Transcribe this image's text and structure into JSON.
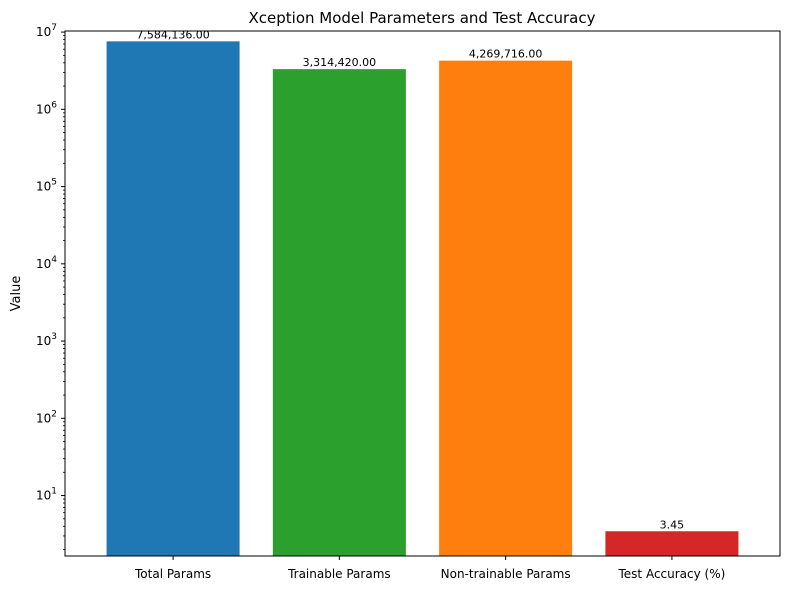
{
  "chart_data": {
    "type": "bar",
    "title": "Xception Model Parameters and Test Accuracy",
    "xlabel": "",
    "ylabel": "Value",
    "yscale": "log",
    "ylim": [
      1.65,
      10000000
    ],
    "categories": [
      "Total Params",
      "Trainable Params",
      "Non-trainable Params",
      "Test Accuracy (%)"
    ],
    "values": [
      7584136,
      3314420,
      4269716,
      3.45
    ],
    "data_labels": [
      "7,584,136.00",
      "3,314,420.00",
      "4,269,716.00",
      "3.45"
    ],
    "colors": [
      "#1f77b4",
      "#2ca02c",
      "#ff7f0e",
      "#d62728"
    ],
    "y_ticks": [
      {
        "base": "10",
        "exp": "1",
        "value": 10
      },
      {
        "base": "10",
        "exp": "2",
        "value": 100
      },
      {
        "base": "10",
        "exp": "3",
        "value": 1000
      },
      {
        "base": "10",
        "exp": "4",
        "value": 10000
      },
      {
        "base": "10",
        "exp": "5",
        "value": 100000
      },
      {
        "base": "10",
        "exp": "6",
        "value": 1000000
      },
      {
        "base": "10",
        "exp": "7",
        "value": 10000000
      }
    ],
    "grid": false,
    "legend": "none"
  }
}
